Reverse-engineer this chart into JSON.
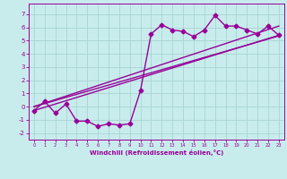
{
  "background_color": "#c8ecec",
  "grid_color": "#aad4d4",
  "line_color": "#990099",
  "xlabel": "Windchill (Refroidissement éolien,°C)",
  "xlim": [
    -0.5,
    23.5
  ],
  "ylim": [
    -2.5,
    7.8
  ],
  "yticks": [
    -2,
    -1,
    0,
    1,
    2,
    3,
    4,
    5,
    6,
    7
  ],
  "xticks": [
    0,
    1,
    2,
    3,
    4,
    5,
    6,
    7,
    8,
    9,
    10,
    11,
    12,
    13,
    14,
    15,
    16,
    17,
    18,
    19,
    20,
    21,
    22,
    23
  ],
  "series1_x": [
    0,
    1,
    2,
    3,
    4,
    5,
    6,
    7,
    8,
    9,
    10,
    11,
    12,
    13,
    14,
    15,
    16,
    17,
    18,
    19,
    20,
    21,
    22,
    23
  ],
  "series1_y": [
    -0.3,
    0.4,
    -0.5,
    0.2,
    -1.1,
    -1.1,
    -1.5,
    -1.3,
    -1.4,
    -1.3,
    1.2,
    5.5,
    6.2,
    5.8,
    5.7,
    5.3,
    5.8,
    6.9,
    6.1,
    6.1,
    5.8,
    5.5,
    6.1,
    5.4
  ],
  "series2_x": [
    0,
    23
  ],
  "series2_y": [
    -0.3,
    5.4
  ],
  "series3_x": [
    0,
    23
  ],
  "series3_y": [
    0.0,
    5.35
  ],
  "series4_x": [
    0,
    23
  ],
  "series4_y": [
    0.0,
    6.1
  ],
  "marker": "D",
  "markersize": 2.5,
  "linewidth": 1.0
}
